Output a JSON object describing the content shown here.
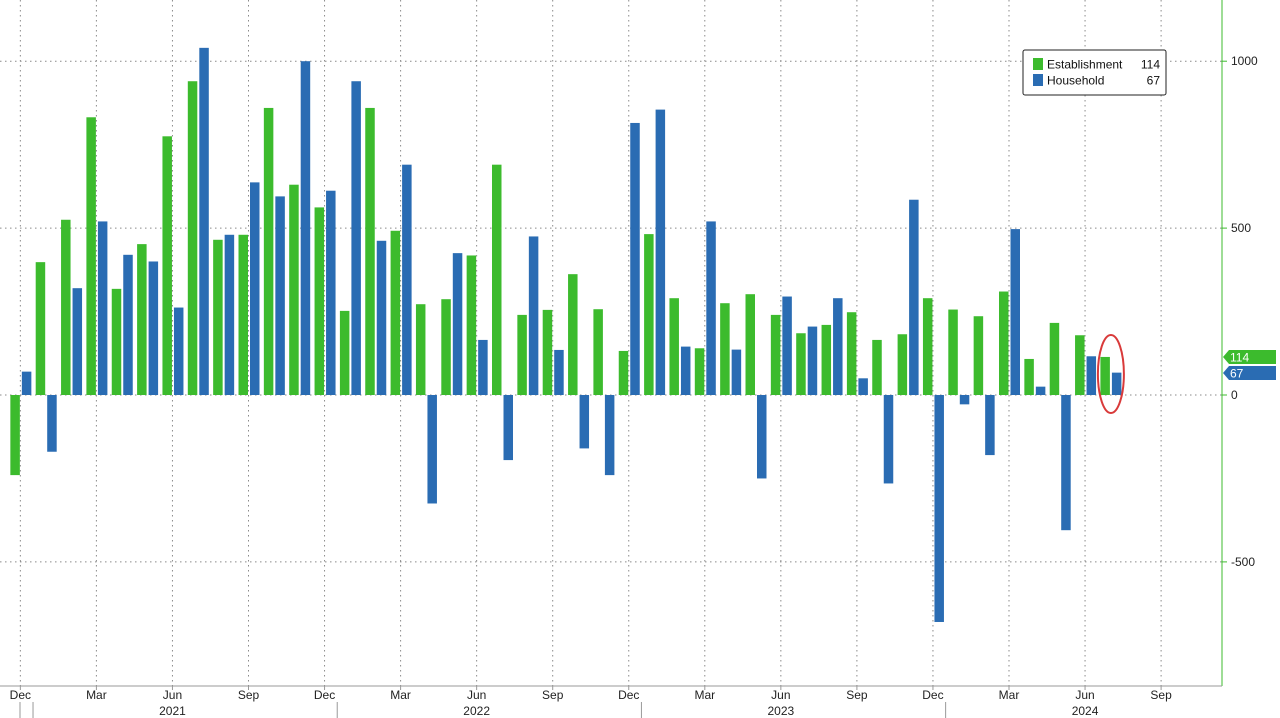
{
  "chart_data": {
    "type": "bar",
    "title": "",
    "xlabel": "",
    "ylabel": "",
    "ylim": [
      -760,
      1050
    ],
    "grid": true,
    "legend_position": "top-right",
    "y_ticks": [
      1000,
      500,
      0,
      -500
    ],
    "y_tick_labels": [
      "1000",
      "500",
      "0",
      "-500"
    ],
    "x_tick_labels": [
      "Dec",
      "Mar",
      "Jun",
      "Sep",
      "Dec",
      "Mar",
      "Jun",
      "Sep",
      "Dec",
      "Mar",
      "Jun",
      "Sep",
      "Dec",
      "Mar",
      "Jun",
      "Sep"
    ],
    "year_labels": [
      "2021",
      "2022",
      "2023",
      "2024"
    ],
    "categories": [
      "2020-12",
      "2021-01",
      "2021-02",
      "2021-03",
      "2021-04",
      "2021-05",
      "2021-06",
      "2021-07",
      "2021-08",
      "2021-09",
      "2021-10",
      "2021-11",
      "2021-12",
      "2022-01",
      "2022-02",
      "2022-03",
      "2022-04",
      "2022-05",
      "2022-06",
      "2022-07",
      "2022-08",
      "2022-09",
      "2022-10",
      "2022-11",
      "2022-12",
      "2023-01",
      "2023-02",
      "2023-03",
      "2023-04",
      "2023-05",
      "2023-06",
      "2023-07",
      "2023-08",
      "2023-09",
      "2023-10",
      "2023-11",
      "2023-12",
      "2024-01",
      "2024-02",
      "2024-03",
      "2024-04",
      "2024-05",
      "2024-06",
      "2024-07"
    ],
    "series": [
      {
        "name": "Establishment",
        "color": "#3cbb2d",
        "values": [
          -240,
          398,
          525,
          832,
          318,
          452,
          775,
          940,
          465,
          480,
          860,
          630,
          562,
          252,
          860,
          492,
          272,
          287,
          418,
          690,
          240,
          255,
          362,
          257,
          132,
          482,
          290,
          140,
          275,
          302,
          240,
          185,
          210,
          248,
          165,
          182,
          290,
          256,
          236,
          310,
          108,
          216,
          179,
          114
        ]
      },
      {
        "name": "Household",
        "color": "#2a6cb3",
        "values": [
          70,
          -170,
          320,
          520,
          420,
          400,
          262,
          1040,
          480,
          637,
          595,
          1000,
          612,
          940,
          462,
          690,
          -325,
          425,
          165,
          -195,
          475,
          135,
          -160,
          -240,
          815,
          855,
          145,
          520,
          136,
          -250,
          295,
          205,
          290,
          50,
          -265,
          585,
          -680,
          -28,
          -180,
          497,
          25,
          -405,
          116,
          67
        ]
      }
    ],
    "legend": [
      {
        "name": "Establishment",
        "value": "114",
        "color": "#3cbb2d"
      },
      {
        "name": "Household",
        "value": "67",
        "color": "#2a6cb3"
      }
    ],
    "last_value_tags": [
      {
        "text": "114",
        "color": "#3cbb2d"
      },
      {
        "text": "67",
        "color": "#2a6cb3"
      }
    ],
    "annotation": {
      "type": "circle",
      "color": "#d93a3a",
      "target": "2024-07"
    }
  }
}
